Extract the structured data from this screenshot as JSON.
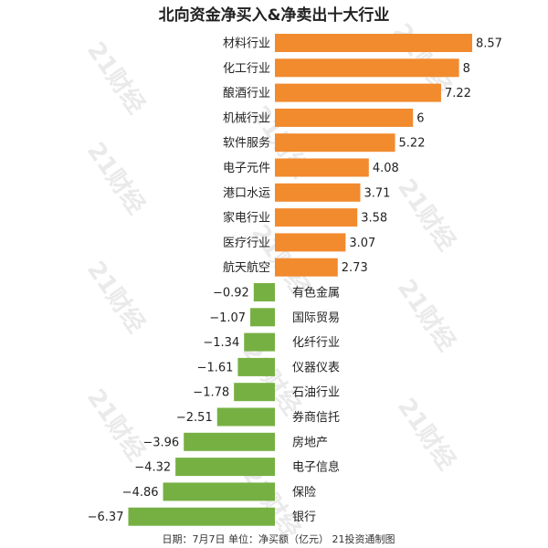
{
  "chart_data": {
    "type": "bar",
    "orientation": "horizontal",
    "title": "北向资金净买入&净卖出十大行业",
    "categories": [
      "材料行业",
      "化工行业",
      "酿酒行业",
      "机械行业",
      "软件服务",
      "电子元件",
      "港口水运",
      "家电行业",
      "医疗行业",
      "航天航空",
      "有色金属",
      "国际贸易",
      "化纤行业",
      "仪器仪表",
      "石油行业",
      "券商信托",
      "房地产",
      "电子信息",
      "保险",
      "银行"
    ],
    "values": [
      8.57,
      8,
      7.22,
      6,
      5.22,
      4.08,
      3.71,
      3.58,
      3.07,
      2.73,
      -0.92,
      -1.07,
      -1.34,
      -1.61,
      -1.78,
      -2.51,
      -3.96,
      -4.32,
      -4.86,
      -6.37
    ],
    "value_labels": [
      "8.57",
      "8",
      "7.22",
      "6",
      "5.22",
      "4.08",
      "3.71",
      "3.58",
      "3.07",
      "2.73",
      "−0.92",
      "−1.07",
      "−1.34",
      "−1.61",
      "−1.78",
      "−2.51",
      "−3.96",
      "−4.32",
      "−4.86",
      "−6.37"
    ],
    "colors": {
      "positive": "#f28a2e",
      "negative": "#76b043"
    },
    "footer": "日期：7月7日  单位：净买额（亿元） 21投资通制图",
    "watermark": "21财经",
    "grid": false,
    "legend": "none"
  }
}
